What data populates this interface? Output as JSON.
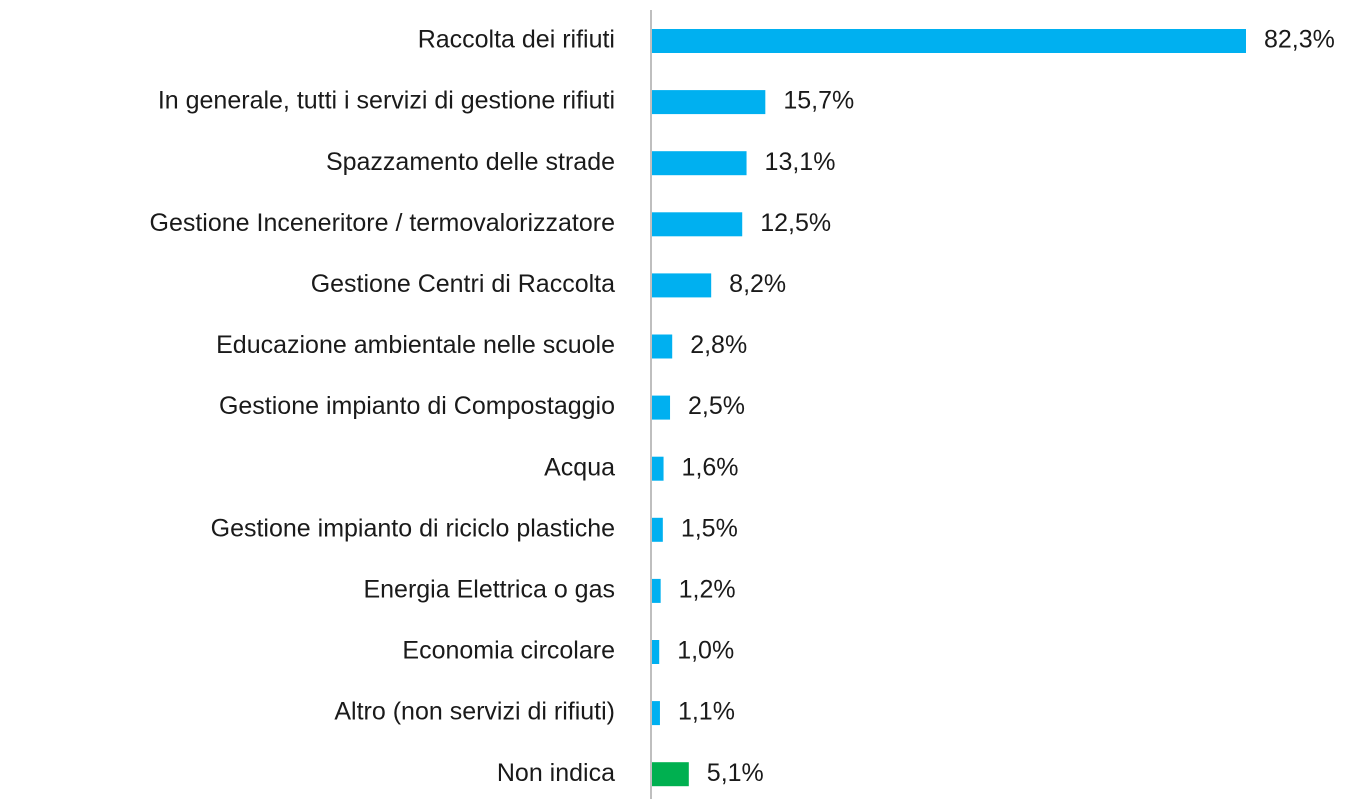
{
  "chart_data": {
    "type": "hbar",
    "categories": [
      "Raccolta dei rifiuti",
      "In generale, tutti i servizi di gestione rifiuti",
      "Spazzamento delle strade",
      "Gestione Inceneritore / termovalorizzatore",
      "Gestione Centri di Raccolta",
      "Educazione ambientale nelle scuole",
      "Gestione impianto di Compostaggio",
      "Acqua",
      "Gestione impianto di riciclo plastiche",
      "Energia Elettrica o gas",
      "Economia circolare",
      "Altro (non servizi di rifiuti)",
      "Non indica"
    ],
    "values": [
      82.3,
      15.7,
      13.1,
      12.5,
      8.2,
      2.8,
      2.5,
      1.6,
      1.5,
      1.2,
      1.0,
      1.1,
      5.1
    ],
    "value_labels": [
      "82,3%",
      "15,7%",
      "13,1%",
      "12,5%",
      "8,2%",
      "2,8%",
      "2,5%",
      "1,6%",
      "1,5%",
      "1,2%",
      "1,0%",
      "1,1%",
      "5,1%"
    ],
    "colors": [
      "#00b0f0",
      "#00b0f0",
      "#00b0f0",
      "#00b0f0",
      "#00b0f0",
      "#00b0f0",
      "#00b0f0",
      "#00b0f0",
      "#00b0f0",
      "#00b0f0",
      "#00b0f0",
      "#00b0f0",
      "#00b050"
    ]
  }
}
